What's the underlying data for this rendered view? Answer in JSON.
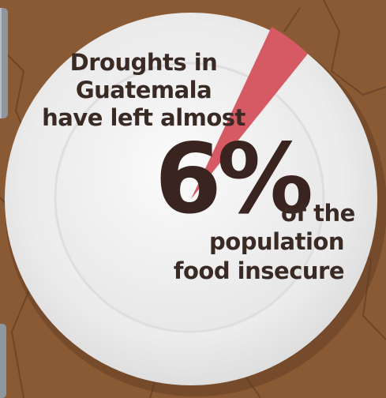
{
  "infographic": {
    "headline": "Droughts in\nGuatemala\nhave left almost",
    "figure": "6%",
    "figure_value_percent": 6,
    "suffix": "of the",
    "tail": "population\nfood insecure",
    "colors": {
      "table": "#8a5a34",
      "plate": "#eeeeee",
      "wedge": "#d65a63",
      "text": "#3a2420"
    }
  }
}
